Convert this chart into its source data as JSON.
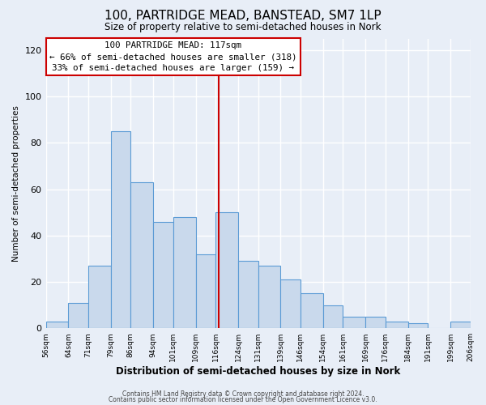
{
  "title": "100, PARTRIDGE MEAD, BANSTEAD, SM7 1LP",
  "subtitle": "Size of property relative to semi-detached houses in Nork",
  "xlabel": "Distribution of semi-detached houses by size in Nork",
  "ylabel": "Number of semi-detached properties",
  "bin_labels": [
    "56sqm",
    "64sqm",
    "71sqm",
    "79sqm",
    "86sqm",
    "94sqm",
    "101sqm",
    "109sqm",
    "116sqm",
    "124sqm",
    "131sqm",
    "139sqm",
    "146sqm",
    "154sqm",
    "161sqm",
    "169sqm",
    "176sqm",
    "184sqm",
    "191sqm",
    "199sqm",
    "206sqm"
  ],
  "bar_heights": [
    3,
    11,
    27,
    85,
    63,
    46,
    48,
    32,
    50,
    29,
    27,
    21,
    15,
    10,
    5,
    5,
    3,
    2,
    0,
    3
  ],
  "bin_edges": [
    56,
    64,
    71,
    79,
    86,
    94,
    101,
    109,
    116,
    124,
    131,
    139,
    146,
    154,
    161,
    169,
    176,
    184,
    191,
    199,
    206
  ],
  "bar_color": "#c9d9ec",
  "bar_edge_color": "#5b9bd5",
  "property_value": 117,
  "vline_color": "#cc0000",
  "annotation_title": "100 PARTRIDGE MEAD: 117sqm",
  "annotation_line1": "← 66% of semi-detached houses are smaller (318)",
  "annotation_line2": "33% of semi-detached houses are larger (159) →",
  "annotation_box_edge": "#cc0000",
  "ylim": [
    0,
    125
  ],
  "yticks": [
    0,
    20,
    40,
    60,
    80,
    100,
    120
  ],
  "background_color": "#e8eef7",
  "footer1": "Contains HM Land Registry data © Crown copyright and database right 2024.",
  "footer2": "Contains public sector information licensed under the Open Government Licence v3.0."
}
